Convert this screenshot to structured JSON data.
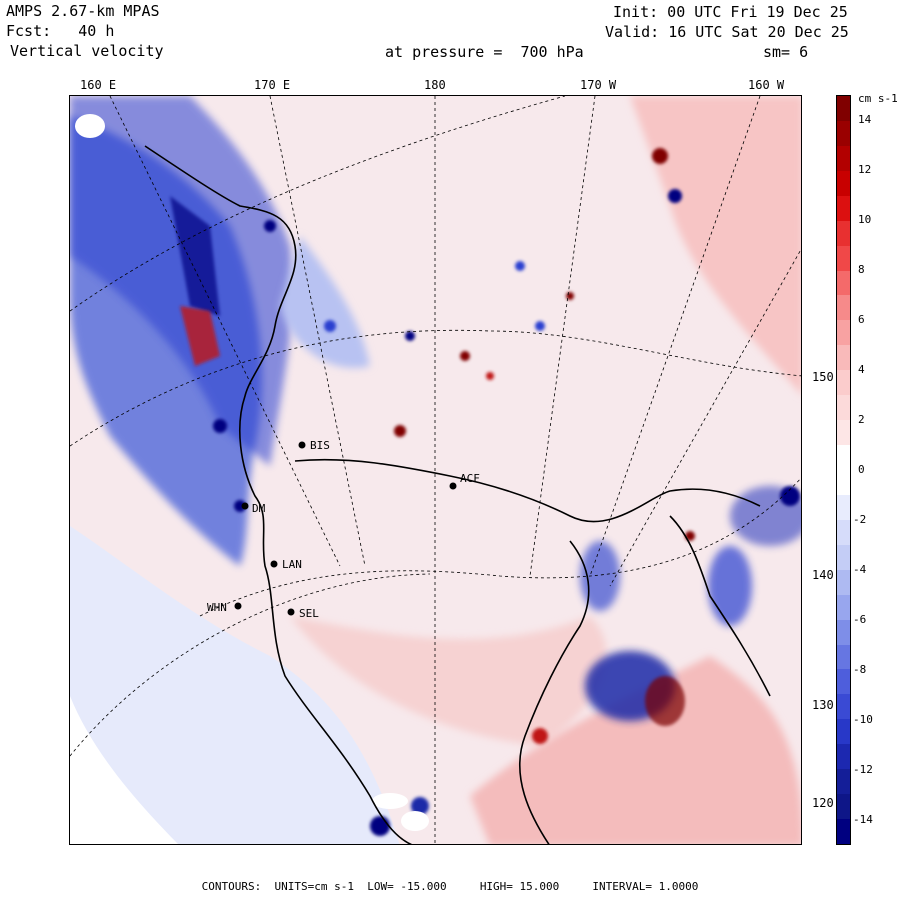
{
  "header": {
    "model": "AMPS 2.67-km MPAS",
    "forecast_label": "Fcst:",
    "forecast_hours": "40 h",
    "field": "Vertical velocity",
    "init": "Init: 00 UTC Fri 19 Dec 25",
    "valid": "Valid: 16 UTC Sat 20 Dec 25",
    "pressure": "at pressure =  700 hPa",
    "smoothing": "sm= 6"
  },
  "axes": {
    "top_longitudes": [
      "160 E",
      "170 E",
      "180",
      "170 W",
      "160 W"
    ],
    "right_longitudes": [
      "150 W",
      "140 W",
      "130 W",
      "120 W"
    ]
  },
  "stations": [
    "BIS",
    "ACF",
    "DM",
    "LAN",
    "SEL",
    "WHN"
  ],
  "colorbar": {
    "units": "cm s-1",
    "ticks": [
      "14",
      "12",
      "10",
      "8",
      "6",
      "4",
      "2",
      "0",
      "-2",
      "-4",
      "-6",
      "-8",
      "-10",
      "-12",
      "-14"
    ],
    "range": [
      -15,
      15
    ]
  },
  "footer": {
    "contours_label": "CONTOURS:",
    "units": "UNITS=cm s-1",
    "low": "LOW= -15.000",
    "high": "HIGH= 15.000",
    "interval": "INTERVAL= 1.0000"
  },
  "colors": {
    "neg_strong": "#000080",
    "neg_mid": "#2a3fd0",
    "neg_light": "#b8c2f2",
    "neg_faint": "#e4e8fb",
    "zero": "#ffffff",
    "pos_faint": "#fbe6e6",
    "pos_light": "#f5b3b3",
    "pos_mid": "#e03030",
    "pos_strong": "#800000"
  }
}
